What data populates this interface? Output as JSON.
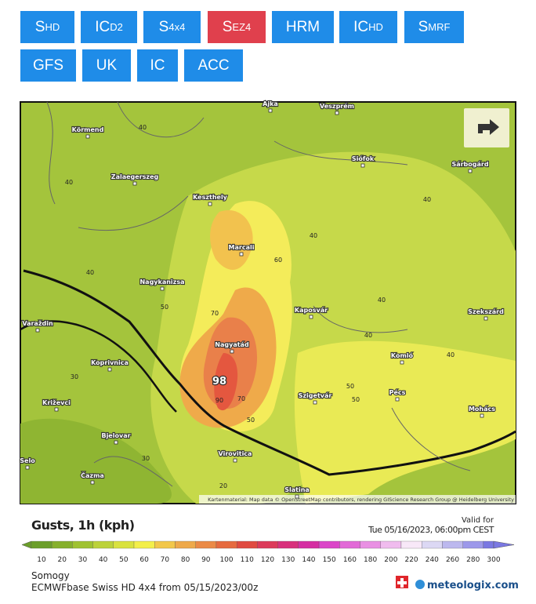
{
  "buttons": [
    {
      "main": "S",
      "sub": "HD"
    },
    {
      "main": "IC",
      "sub": "D2"
    },
    {
      "main": "S",
      "sub": "4x4"
    },
    {
      "main": "S",
      "sub": "EZ4"
    },
    {
      "main": "HRM"
    },
    {
      "main": "IC",
      "sub": "HD"
    },
    {
      "main": "S",
      "sub": "MRF"
    },
    {
      "main": "GFS"
    },
    {
      "main": "UK"
    },
    {
      "main": "IC"
    },
    {
      "main": "ACC"
    }
  ],
  "map": {
    "cities": [
      "Ajka",
      "Veszprém",
      "Körmend",
      "Siófok",
      "Sárbogárd",
      "Zalaegerszeg",
      "Keszthely",
      "Marcali",
      "Nagykanizsa",
      "Kaposvár",
      "Szekszárd",
      "Varaždin",
      "Nagyatád",
      "Komló",
      "Koprivnica",
      "Szigetvár",
      "Pécs",
      "Mohács",
      "Križevci",
      "Bjelovar",
      "Virovitica",
      "Čazma",
      "Slatina",
      "Selo"
    ],
    "contours": [
      "40",
      "40",
      "40",
      "40",
      "40",
      "40",
      "40",
      "40",
      "50",
      "50",
      "50",
      "50",
      "60",
      "70",
      "70",
      "90",
      "30",
      "30",
      "20"
    ],
    "peak": "98",
    "attribution": "Kartenmaterial: Map data © OpenStreetMap contributors, rendering GIScience Research Group @ Heidelberg University"
  },
  "legend": {
    "title": "Gusts, 1h (kph)",
    "valid_label": "Valid for",
    "valid_time": "Tue 05/16/2023, 06:00pm CEST",
    "ticks": [
      10,
      20,
      30,
      40,
      50,
      60,
      70,
      80,
      90,
      100,
      110,
      120,
      130,
      140,
      150,
      160,
      180,
      200,
      220,
      240,
      260,
      280,
      300
    ],
    "colors": [
      "#6b9e2a",
      "#86b02c",
      "#9fc231",
      "#bcd23a",
      "#d9e23f",
      "#f3ef4a",
      "#f2c74a",
      "#eea94a",
      "#eb8a46",
      "#e66a3f",
      "#e04a40",
      "#dc3a5a",
      "#d8307c",
      "#d52ea2",
      "#db46c8",
      "#e26ad7",
      "#e990e3",
      "#f0bcee",
      "#f8e8f8",
      "#dcd8f4",
      "#bcb8ee",
      "#9c98ea",
      "#7a78e2"
    ]
  },
  "footer": {
    "region": "Somogy",
    "model": "ECMWFbase Swiss HD 4x4 from 05/15/2023/00z",
    "brand": "meteologix.com"
  }
}
